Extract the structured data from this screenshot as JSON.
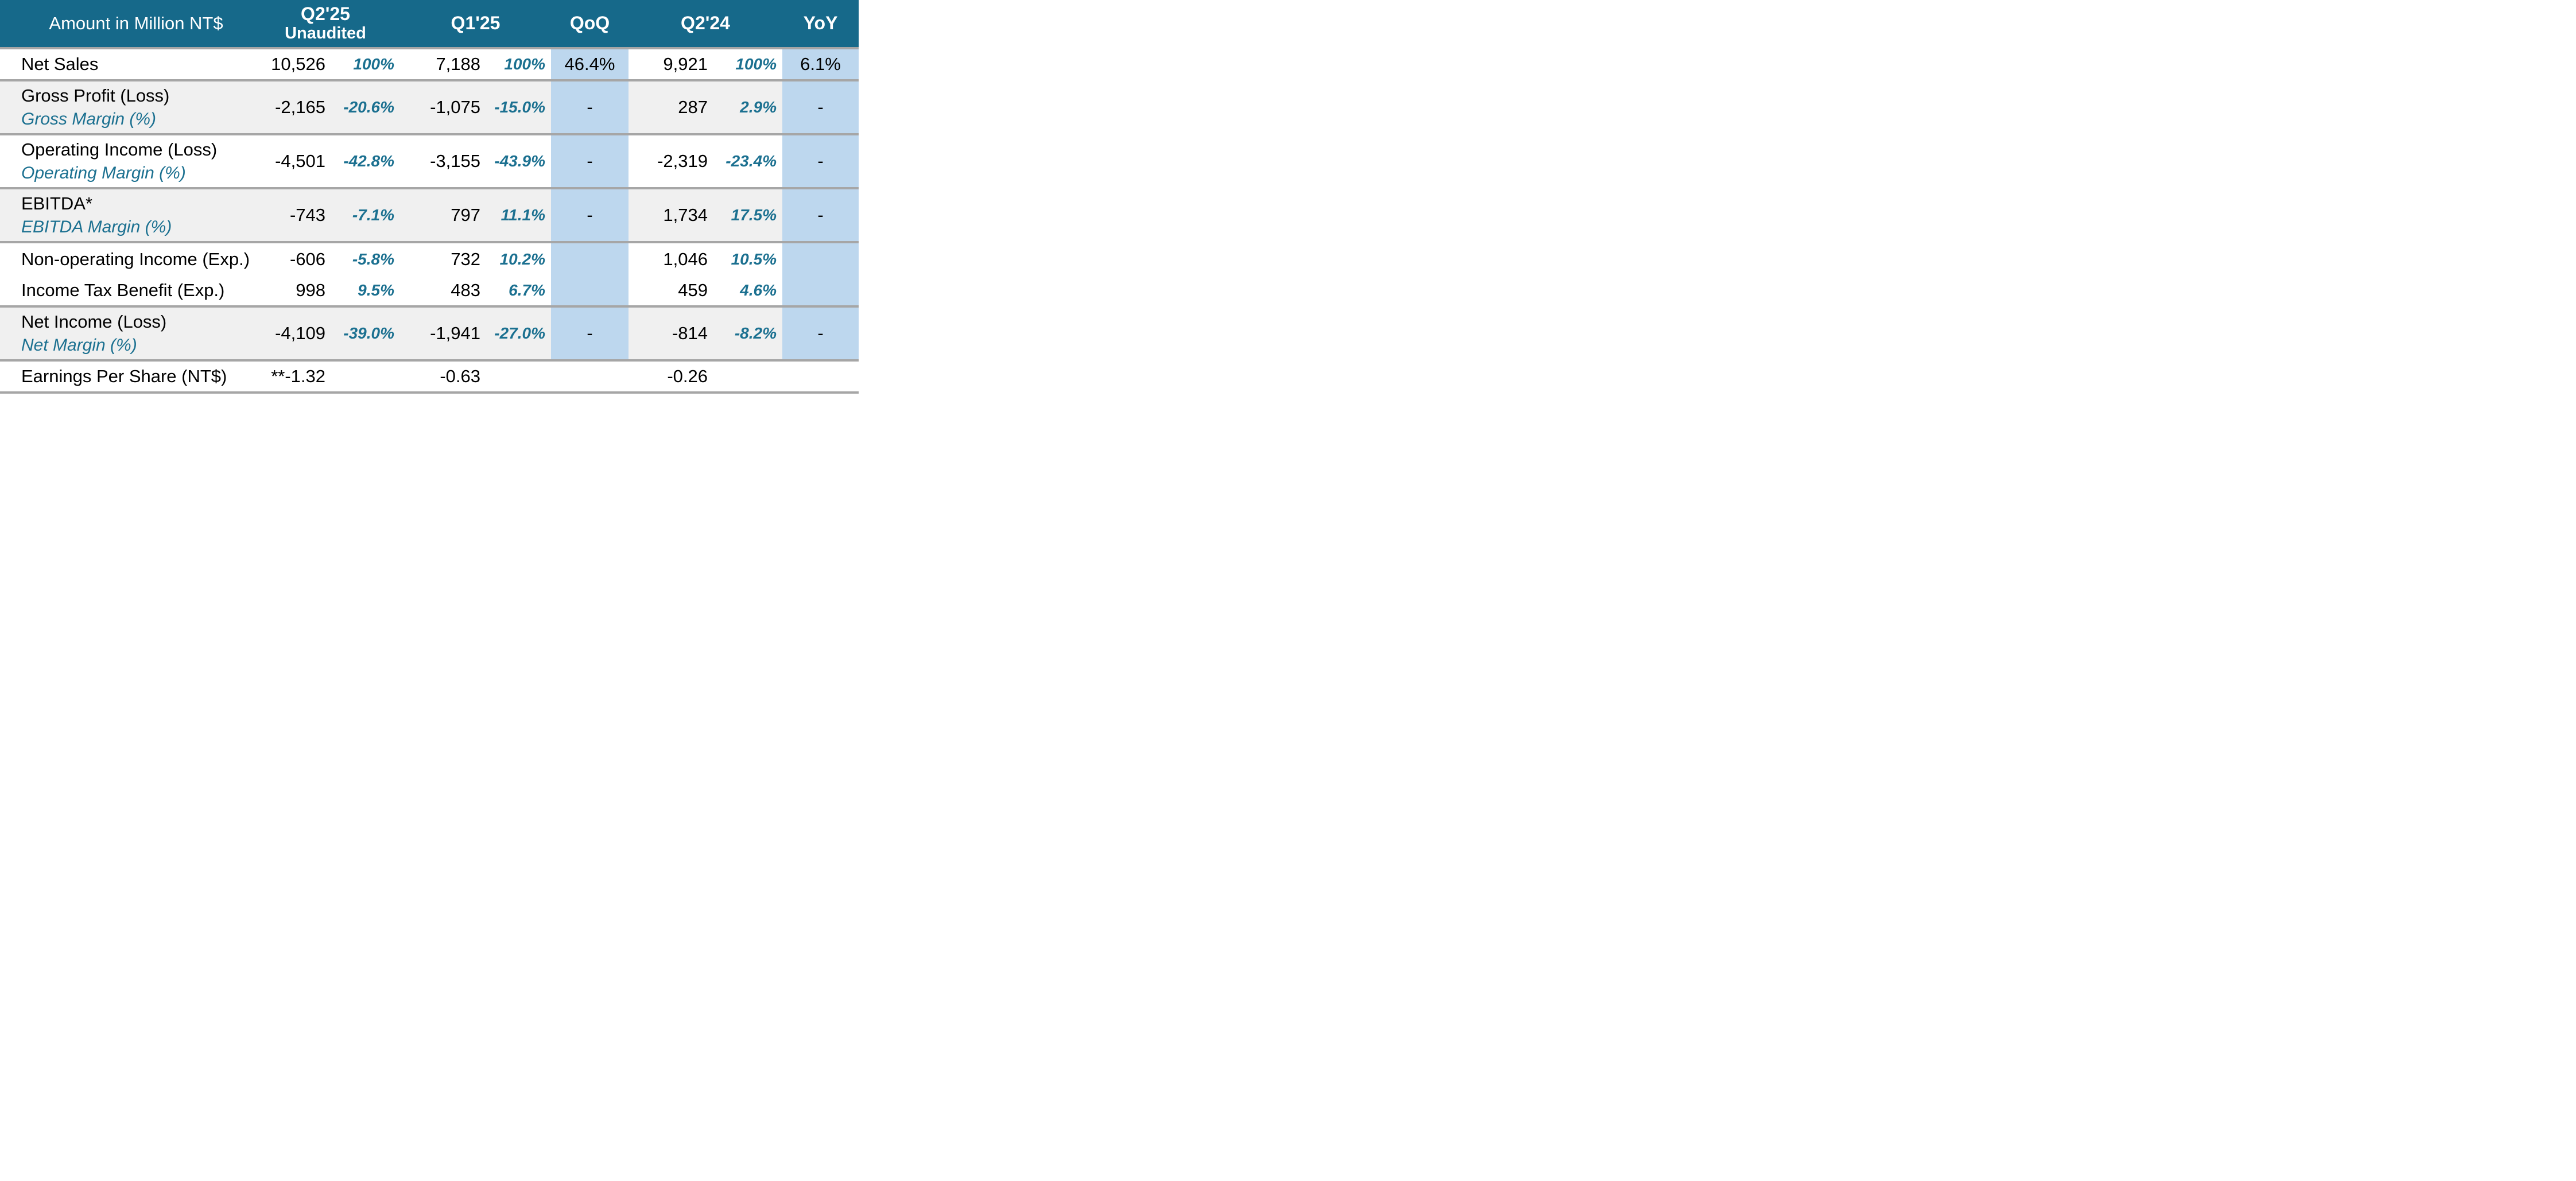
{
  "table": {
    "unit_label": "Amount in Million NT$",
    "columns": [
      {
        "key": "q2_25",
        "label": "Q2'25",
        "sublabel": "Unaudited"
      },
      {
        "key": "q1_25",
        "label": "Q1'25",
        "sublabel": ""
      },
      {
        "key": "qoq",
        "label": "QoQ",
        "sublabel": ""
      },
      {
        "key": "q2_24",
        "label": "Q2'24",
        "sublabel": ""
      },
      {
        "key": "yoy",
        "label": "YoY",
        "sublabel": ""
      }
    ],
    "rows": [
      {
        "label": "Net Sales",
        "sublabel": "",
        "q2_25": "10,526",
        "q2_25_pct": "100%",
        "q1_25": "7,188",
        "q1_25_pct": "100%",
        "qoq": "46.4%",
        "q2_24": "9,921",
        "q2_24_pct": "100%",
        "yoy": "6.1%",
        "shaded": false,
        "separator_after": true,
        "show_band": true
      },
      {
        "label": "Gross Profit (Loss)",
        "sublabel": "Gross Margin (%)",
        "q2_25": "-2,165",
        "q2_25_pct": "-20.6%",
        "q1_25": "-1,075",
        "q1_25_pct": "-15.0%",
        "qoq": "-",
        "q2_24": "287",
        "q2_24_pct": "2.9%",
        "yoy": "-",
        "shaded": true,
        "separator_after": true,
        "show_band": true
      },
      {
        "label": "Operating Income (Loss)",
        "sublabel": "Operating Margin (%)",
        "q2_25": "-4,501",
        "q2_25_pct": "-42.8%",
        "q1_25": "-3,155",
        "q1_25_pct": "-43.9%",
        "qoq": "-",
        "q2_24": "-2,319",
        "q2_24_pct": "-23.4%",
        "yoy": "-",
        "shaded": false,
        "separator_after": true,
        "show_band": true
      },
      {
        "label": "EBITDA*",
        "sublabel": "EBITDA Margin (%)",
        "q2_25": "-743",
        "q2_25_pct": "-7.1%",
        "q1_25": "797",
        "q1_25_pct": "11.1%",
        "qoq": "-",
        "q2_24": "1,734",
        "q2_24_pct": "17.5%",
        "yoy": "-",
        "shaded": true,
        "separator_after": true,
        "show_band": true
      },
      {
        "label": "Non-operating Income (Exp.)",
        "sublabel": "",
        "q2_25": "-606",
        "q2_25_pct": "-5.8%",
        "q1_25": "732",
        "q1_25_pct": "10.2%",
        "qoq": "",
        "q2_24": "1,046",
        "q2_24_pct": "10.5%",
        "yoy": "",
        "shaded": false,
        "separator_after": false,
        "show_band": true
      },
      {
        "label": "Income Tax Benefit (Exp.)",
        "sublabel": "",
        "q2_25": "998",
        "q2_25_pct": "9.5%",
        "q1_25": "483",
        "q1_25_pct": "6.7%",
        "qoq": "",
        "q2_24": "459",
        "q2_24_pct": "4.6%",
        "yoy": "",
        "shaded": false,
        "separator_after": true,
        "show_band": true
      },
      {
        "label": "Net Income (Loss)",
        "sublabel": "Net Margin (%)",
        "q2_25": "-4,109",
        "q2_25_pct": "-39.0%",
        "q1_25": "-1,941",
        "q1_25_pct": "-27.0%",
        "qoq": "-",
        "q2_24": "-814",
        "q2_24_pct": "-8.2%",
        "yoy": "-",
        "shaded": true,
        "separator_after": true,
        "show_band": true
      },
      {
        "label": "Earnings Per Share (NT$)",
        "sublabel": "",
        "q2_25": "**-1.32",
        "q2_25_pct": "",
        "q1_25": "-0.63",
        "q1_25_pct": "",
        "qoq": "",
        "q2_24": "-0.26",
        "q2_24_pct": "",
        "yoy": "",
        "shaded": false,
        "separator_after": true,
        "show_band": false
      }
    ],
    "colors": {
      "header_bg": "#16698A",
      "accent_teal": "#1B7090",
      "band_blue": "#BDD7EE",
      "stripe_gray": "#F0F0F0",
      "line_gray": "#A6A6A6",
      "value_text": "#000000",
      "header_text": "#FFFFFF"
    }
  },
  "chart_data": {
    "type": "table",
    "title": "Quarterly Income Statement Summary (Amount in Million NT$)",
    "columns": [
      "Amount in Million NT$",
      "Q2'25 Unaudited",
      "Q2'25 %",
      "Q1'25",
      "Q1'25 %",
      "QoQ",
      "Q2'24",
      "Q2'24 %",
      "YoY"
    ],
    "rows": [
      [
        "Net Sales",
        "10,526",
        "100%",
        "7,188",
        "100%",
        "46.4%",
        "9,921",
        "100%",
        "6.1%"
      ],
      [
        "Gross Profit (Loss) / Gross Margin (%)",
        "-2,165",
        "-20.6%",
        "-1,075",
        "-15.0%",
        "-",
        "287",
        "2.9%",
        "-"
      ],
      [
        "Operating Income (Loss) / Operating Margin (%)",
        "-4,501",
        "-42.8%",
        "-3,155",
        "-43.9%",
        "-",
        "-2,319",
        "-23.4%",
        "-"
      ],
      [
        "EBITDA* / EBITDA Margin (%)",
        "-743",
        "-7.1%",
        "797",
        "11.1%",
        "-",
        "1,734",
        "17.5%",
        "-"
      ],
      [
        "Non-operating Income (Exp.)",
        "-606",
        "-5.8%",
        "732",
        "10.2%",
        "",
        "1,046",
        "10.5%",
        ""
      ],
      [
        "Income Tax Benefit (Exp.)",
        "998",
        "9.5%",
        "483",
        "6.7%",
        "",
        "459",
        "4.6%",
        ""
      ],
      [
        "Net Income (Loss) / Net Margin (%)",
        "-4,109",
        "-39.0%",
        "-1,941",
        "-27.0%",
        "-",
        "-814",
        "-8.2%",
        "-"
      ],
      [
        "Earnings Per Share (NT$)",
        "**-1.32",
        "",
        "-0.63",
        "",
        "",
        "-0.26",
        "",
        ""
      ]
    ]
  }
}
